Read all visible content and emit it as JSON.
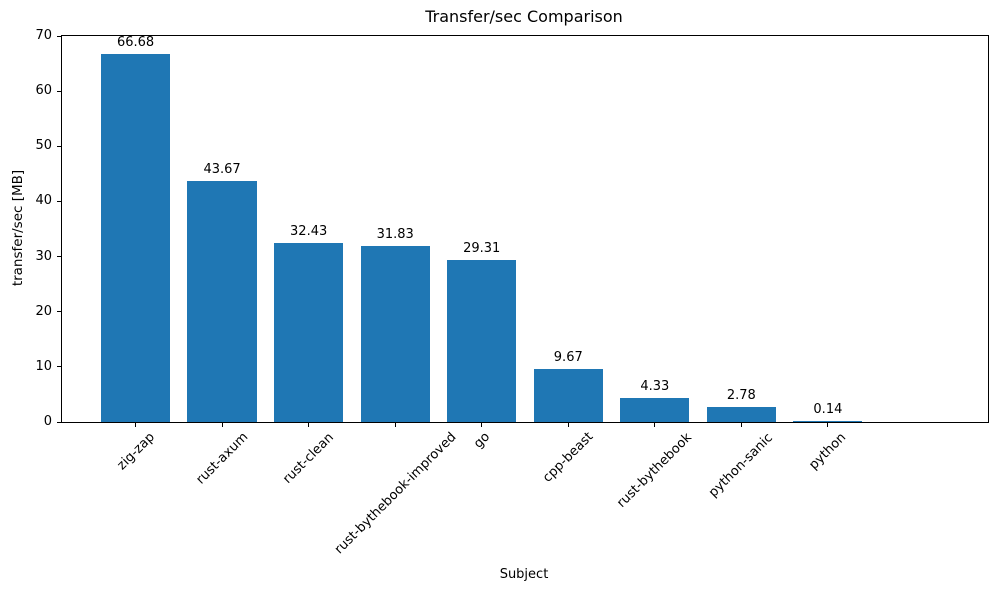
{
  "chart_data": {
    "type": "bar",
    "title": "Transfer/sec Comparison",
    "xlabel": "Subject",
    "ylabel": "transfer/sec [MB]",
    "categories": [
      "zig-zap",
      "rust-axum",
      "rust-clean",
      "rust-bythebook-improved",
      "go",
      "cpp-beast",
      "rust-bythebook",
      "python-sanic",
      "python"
    ],
    "values": [
      66.68,
      43.67,
      32.43,
      31.83,
      29.31,
      9.67,
      4.33,
      2.78,
      0.14
    ],
    "bar_labels": [
      "66.68",
      "43.67",
      "32.43",
      "31.83",
      "29.31",
      "9.67",
      "4.33",
      "2.78",
      "0.14"
    ],
    "ylim": [
      0,
      70
    ],
    "yticks": [
      0,
      10,
      20,
      30,
      40,
      50,
      60,
      70
    ],
    "bar_color": "#1f77b4",
    "axis_color": "#000000",
    "background_color": "#ffffff",
    "grid": false,
    "legend": null,
    "x_tick_rotation_deg": 45
  }
}
